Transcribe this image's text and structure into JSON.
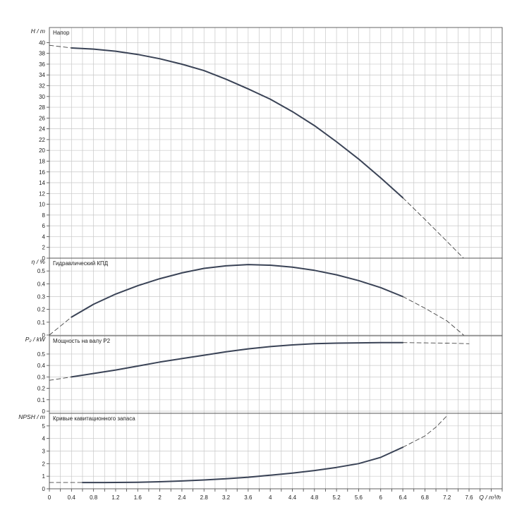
{
  "chart_data": {
    "type": "line",
    "x_axis": {
      "label": "Q / m³/h",
      "range": [
        0,
        8.2
      ],
      "tick_labels": [
        "0",
        "0.4",
        "0.8",
        "1.2",
        "1.6",
        "2",
        "2.4",
        "2.8",
        "3.2",
        "3.6",
        "4",
        "4.4",
        "4.8",
        "5.2",
        "5.6",
        "6",
        "6.4",
        "6.8",
        "7.2",
        "7.6"
      ],
      "grid_step": 0.2,
      "grid": true
    },
    "panels": [
      {
        "id": "head",
        "title": "Напор",
        "ylabel": "H / m",
        "ylim": [
          0,
          42.8
        ],
        "tick_labels": [
          "0",
          "2",
          "4",
          "6",
          "8",
          "10",
          "12",
          "14",
          "16",
          "18",
          "20",
          "22",
          "24",
          "26",
          "28",
          "30",
          "32",
          "34",
          "36",
          "38",
          "40"
        ],
        "series": [
          {
            "style": "solid",
            "x": [
              0.4,
              0.8,
              1.2,
              1.6,
              2.0,
              2.4,
              2.8,
              3.2,
              3.6,
              4.0,
              4.4,
              4.8,
              5.2,
              5.6,
              6.0,
              6.4
            ],
            "y": [
              39.0,
              38.8,
              38.4,
              37.8,
              37.0,
              36.0,
              34.8,
              33.2,
              31.4,
              29.5,
              27.2,
              24.6,
              21.6,
              18.4,
              14.9,
              11.2
            ]
          },
          {
            "style": "dashed",
            "x": [
              0.0,
              0.4
            ],
            "y": [
              39.5,
              39.0
            ]
          },
          {
            "style": "dashed",
            "x": [
              6.4,
              6.8,
              7.2,
              7.5
            ],
            "y": [
              11.2,
              7.2,
              3.1,
              0.0
            ]
          }
        ]
      },
      {
        "id": "efficiency",
        "title": "Гидравлический КПД",
        "ylabel": "η / %",
        "ylim": [
          0,
          0.6
        ],
        "tick_labels": [
          "0",
          "0.1",
          "0.2",
          "0.3",
          "0.4",
          "0.5"
        ],
        "series": [
          {
            "style": "solid",
            "x": [
              0.4,
              0.8,
              1.2,
              1.6,
              2.0,
              2.4,
              2.8,
              3.2,
              3.6,
              4.0,
              4.4,
              4.8,
              5.2,
              5.6,
              6.0,
              6.4
            ],
            "y": [
              0.14,
              0.24,
              0.32,
              0.385,
              0.44,
              0.485,
              0.52,
              0.54,
              0.55,
              0.545,
              0.53,
              0.505,
              0.47,
              0.425,
              0.37,
              0.3
            ]
          },
          {
            "style": "dashed",
            "x": [
              0.0,
              0.2,
              0.4
            ],
            "y": [
              0.0,
              0.07,
              0.14
            ]
          },
          {
            "style": "dashed",
            "x": [
              6.4,
              6.8,
              7.2,
              7.5
            ],
            "y": [
              0.3,
              0.21,
              0.11,
              0.0
            ]
          }
        ]
      },
      {
        "id": "power",
        "title": "Мощность на валу P2",
        "ylabel": "P₂ / kW",
        "ylim": [
          0,
          0.66
        ],
        "tick_labels": [
          "0",
          "0.1",
          "0.2",
          "0.3",
          "0.4",
          "0.5"
        ],
        "series": [
          {
            "style": "solid",
            "x": [
              0.4,
              0.8,
              1.2,
              1.6,
              2.0,
              2.4,
              2.8,
              3.2,
              3.6,
              4.0,
              4.4,
              4.8,
              5.2,
              5.6,
              6.0,
              6.4
            ],
            "y": [
              0.3,
              0.33,
              0.36,
              0.395,
              0.43,
              0.46,
              0.49,
              0.52,
              0.545,
              0.565,
              0.58,
              0.59,
              0.595,
              0.598,
              0.6,
              0.6
            ]
          },
          {
            "style": "dashed",
            "x": [
              0.0,
              0.4
            ],
            "y": [
              0.27,
              0.3
            ]
          },
          {
            "style": "dashed",
            "x": [
              6.4,
              6.8,
              7.2,
              7.6
            ],
            "y": [
              0.6,
              0.598,
              0.595,
              0.59
            ]
          }
        ]
      },
      {
        "id": "npsh",
        "title": "Кривые кавитационного запаса",
        "ylabel": "NPSH / m",
        "ylim": [
          0,
          6.0
        ],
        "tick_labels": [
          "0",
          "1",
          "2",
          "3",
          "4",
          "5"
        ],
        "series": [
          {
            "style": "dashed",
            "x": [
              0.0,
              0.6
            ],
            "y": [
              0.5,
              0.5
            ]
          },
          {
            "style": "solid",
            "x": [
              0.6,
              1.0,
              1.6,
              2.0,
              2.4,
              2.8,
              3.2,
              3.6,
              4.0,
              4.4,
              4.8,
              5.2,
              5.6,
              6.0,
              6.4
            ],
            "y": [
              0.5,
              0.5,
              0.52,
              0.56,
              0.62,
              0.7,
              0.8,
              0.92,
              1.08,
              1.25,
              1.45,
              1.7,
              2.0,
              2.5,
              3.3
            ]
          },
          {
            "style": "dashed",
            "x": [
              6.4,
              6.8,
              7.0,
              7.2
            ],
            "y": [
              3.3,
              4.2,
              4.9,
              5.8
            ]
          }
        ]
      }
    ]
  }
}
